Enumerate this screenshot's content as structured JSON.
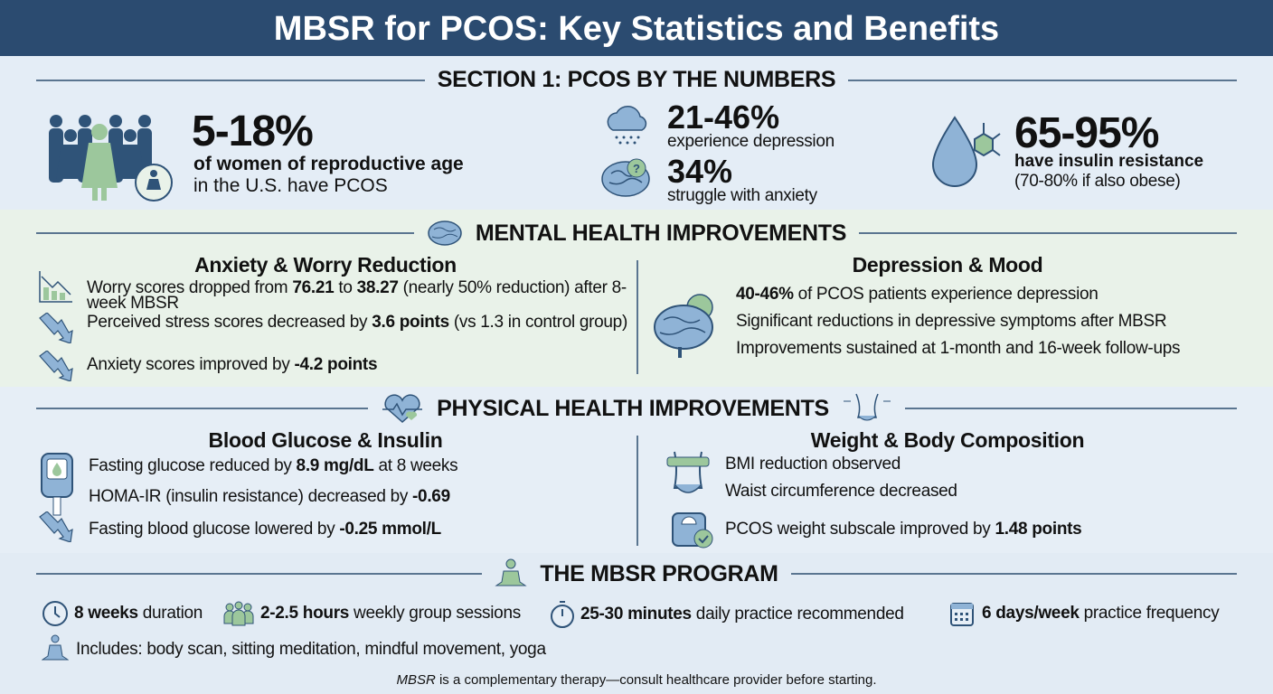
{
  "title": "MBSR for PCOS: Key Statistics and Benefits",
  "colors": {
    "header": "#2b4b70",
    "navy": "#2f5378",
    "green": "#9cc79c",
    "blue": "#8fb3d6"
  },
  "section1": {
    "heading": "SECTION 1: PCOS BY THE NUMBERS",
    "stat1": {
      "value": "5-18%",
      "line1": "of women of reproductive age",
      "line2": "in the U.S. have PCOS",
      "icon": "women-group-icon"
    },
    "stat2": {
      "value": "21-46%",
      "label": "experience depression",
      "icon": "rain-cloud-icon"
    },
    "stat3": {
      "value": "34%",
      "label": "struggle with anxiety",
      "icon": "brain-question-icon"
    },
    "stat4": {
      "value": "65-95%",
      "line1": "have insulin resistance",
      "line2": "(70-80% if also obese)",
      "icon": "drop-molecule-icon"
    }
  },
  "mental": {
    "heading": "MENTAL HEALTH IMPROVEMENTS",
    "left": {
      "title": "Anxiety & Worry Reduction",
      "i1": {
        "a": "Worry scores dropped from ",
        "b1": "76.21",
        "c": " to ",
        "b2": "38.27",
        "d": " (nearly 50% reduction) after 8-week MBSR"
      },
      "i2": {
        "a": "Perceived stress scores decreased by ",
        "b": "3.6 points",
        "c": " (vs 1.3 in control group)"
      },
      "i3": {
        "a": "Anxiety scores improved by ",
        "b": "-4.2 points"
      }
    },
    "right": {
      "title": "Depression & Mood",
      "i1": {
        "b": "40-46%",
        "a": " of PCOS patients experience depression"
      },
      "i2": "Significant reductions in depressive symptoms after MBSR",
      "i3": "Improvements sustained at 1-month and 16-week follow-ups"
    }
  },
  "physical": {
    "heading": "PHYSICAL HEALTH IMPROVEMENTS",
    "left": {
      "title": "Blood Glucose & Insulin",
      "i1": {
        "a": "Fasting glucose reduced by ",
        "b": "8.9 mg/dL",
        "c": " at 8 weeks"
      },
      "i2": {
        "a": "HOMA-IR (insulin resistance) decreased by ",
        "b": "-0.69"
      },
      "i3": {
        "a": "Fasting blood glucose lowered by ",
        "b": "-0.25 mmol/L"
      }
    },
    "right": {
      "title": "Weight & Body Composition",
      "i1": "BMI reduction observed",
      "i2": "Waist circumference decreased",
      "i3": {
        "a": "PCOS weight subscale improved by ",
        "b": "1.48 points"
      }
    }
  },
  "program": {
    "heading": "THE MBSR PROGRAM",
    "items": [
      {
        "b": "8 weeks",
        "a": " duration"
      },
      {
        "b": "2-2.5 hours",
        "a": " weekly group sessions"
      },
      {
        "b": "25-30 minutes",
        "a": " daily practice recommended"
      },
      {
        "b": "6 days/week",
        "a": " practice frequency"
      }
    ],
    "includes": "Includes: body scan, sitting meditation, mindful movement, yoga",
    "footnote_em": "MBSR",
    "footnote": " is a complementary therapy—consult healthcare provider before starting."
  }
}
